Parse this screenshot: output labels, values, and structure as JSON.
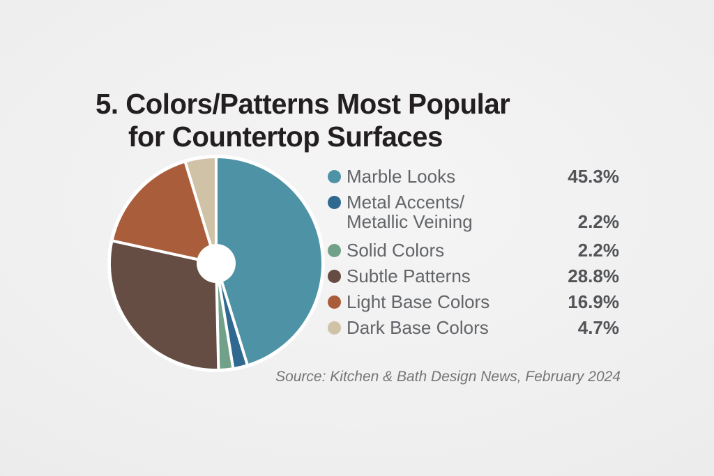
{
  "page": {
    "title_line1": "5. Colors/Patterns Most Popular",
    "title_line2": "for Countertop Surfaces",
    "source": "Source: Kitchen & Bath Design News, February 2024"
  },
  "chart_data": {
    "type": "pie",
    "title": "5. Colors/Patterns Most Popular for Countertop Surfaces",
    "categories": [
      "Marble Looks",
      "Metal Accents/Metallic Veining",
      "Solid Colors",
      "Subtle Patterns",
      "Light Base Colors",
      "Dark Base Colors"
    ],
    "values": [
      45.3,
      2.2,
      2.2,
      28.8,
      16.9,
      4.7
    ],
    "colors": [
      "#4E93A5",
      "#2F6990",
      "#72A18A",
      "#654D43",
      "#AA5D3A",
      "#D0C2A6"
    ],
    "start_angle_deg": 0,
    "direction": "clockwise",
    "donut_hole_ratio": 0.18,
    "slice_gap_color": "#ffffff",
    "legend_position": "right",
    "source": "Source: Kitchen & Bath Design News, February 2024"
  },
  "legend": {
    "items": [
      {
        "label": "Marble Looks",
        "value": "45.3%",
        "color": "#4E93A5"
      },
      {
        "label": "Metal Accents/",
        "label2": "Metallic Veining",
        "value": "2.2%",
        "color": "#2F6990"
      },
      {
        "label": "Solid Colors",
        "value": "2.2%",
        "color": "#72A18A"
      },
      {
        "label": "Subtle Patterns",
        "value": "28.8%",
        "color": "#654D43"
      },
      {
        "label": "Light Base Colors",
        "value": "16.9%",
        "color": "#AA5D3A"
      },
      {
        "label": "Dark Base Colors",
        "value": "4.7%",
        "color": "#D0C2A6"
      }
    ]
  }
}
